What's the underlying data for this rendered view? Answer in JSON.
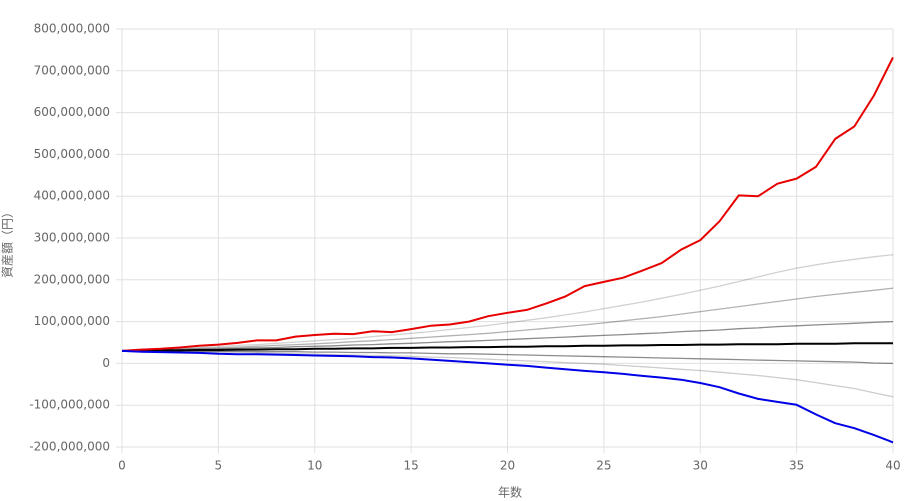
{
  "chart_data": {
    "type": "line",
    "x_label": "年数",
    "y_label": "資産額（円）",
    "x": [
      0,
      1,
      2,
      3,
      4,
      5,
      6,
      7,
      8,
      9,
      10,
      11,
      12,
      13,
      14,
      15,
      16,
      17,
      18,
      19,
      20,
      21,
      22,
      23,
      24,
      25,
      26,
      27,
      28,
      29,
      30,
      31,
      32,
      33,
      34,
      35,
      36,
      37,
      38,
      39,
      40
    ],
    "xlim": [
      0,
      40
    ],
    "xticks": [
      0,
      5,
      10,
      15,
      20,
      25,
      30,
      35,
      40
    ],
    "ylim": [
      -200000000,
      800000000
    ],
    "yticks": [
      {
        "value": -200000000,
        "label": "-200,000,000"
      },
      {
        "value": -100000000,
        "label": "-100,000,000"
      },
      0,
      {
        "value": 100000000,
        "label": "100,000,000"
      },
      {
        "value": 200000000,
        "label": "200,000,000"
      },
      {
        "value": 300000000,
        "label": "300,000,000"
      },
      {
        "value": 400000000,
        "label": "400,000,000"
      },
      {
        "value": 500000000,
        "label": "500,000,000"
      },
      {
        "value": 600000000,
        "label": "600,000,000"
      },
      {
        "value": 700000000,
        "label": "700,000,000"
      },
      {
        "value": 800000000,
        "label": "800,000,000"
      }
    ],
    "grid": true,
    "series": [
      {
        "color": "rgba(0,0,0,0.18)",
        "values": [
          30000000,
          32000000,
          34000000,
          36000000,
          38000000,
          40000000,
          43000000,
          45000000,
          48000000,
          51000000,
          54000000,
          57000000,
          60000000,
          64000000,
          68000000,
          72000000,
          76000000,
          81000000,
          86000000,
          91000000,
          97000000,
          103000000,
          109000000,
          116000000,
          123000000,
          131000000,
          139000000,
          147000000,
          156000000,
          165000000,
          175000000,
          185000000,
          196000000,
          207000000,
          218000000,
          228000000,
          236000000,
          243000000,
          249000000,
          255000000,
          260000000
        ]
      },
      {
        "color": "rgba(0,0,0,0.3)",
        "values": [
          30000000,
          31000000,
          33000000,
          34000000,
          36000000,
          37000000,
          39000000,
          41000000,
          43000000,
          45000000,
          47000000,
          49000000,
          52000000,
          54000000,
          57000000,
          60000000,
          63000000,
          66000000,
          69000000,
          72000000,
          76000000,
          80000000,
          84000000,
          88000000,
          92000000,
          97000000,
          102000000,
          107000000,
          112000000,
          118000000,
          124000000,
          130000000,
          136000000,
          142000000,
          148000000,
          154000000,
          160000000,
          165000000,
          170000000,
          175000000,
          180000000
        ]
      },
      {
        "color": "rgba(0,0,0,0.45)",
        "values": [
          30000000,
          31000000,
          32000000,
          33000000,
          34000000,
          35000000,
          36000000,
          37000000,
          38000000,
          40000000,
          41000000,
          42000000,
          44000000,
          45000000,
          47000000,
          48000000,
          50000000,
          52000000,
          53000000,
          55000000,
          57000000,
          59000000,
          61000000,
          63000000,
          65000000,
          67000000,
          69000000,
          71000000,
          73000000,
          76000000,
          78000000,
          80000000,
          83000000,
          85000000,
          88000000,
          90000000,
          92000000,
          94000000,
          96000000,
          98000000,
          100000000
        ]
      },
      {
        "color": "rgba(0,0,0,0.45)",
        "values": [
          30000000,
          30000000,
          30000000,
          30000000,
          29000000,
          29000000,
          29000000,
          28000000,
          28000000,
          28000000,
          27000000,
          27000000,
          26000000,
          26000000,
          25000000,
          25000000,
          24000000,
          23000000,
          23000000,
          22000000,
          21000000,
          20000000,
          19000000,
          18000000,
          17000000,
          16000000,
          15000000,
          14000000,
          13000000,
          12000000,
          11000000,
          10000000,
          9000000,
          8000000,
          7000000,
          6000000,
          5000000,
          4000000,
          3000000,
          1000000,
          0
        ]
      },
      {
        "color": "rgba(0,0,0,0.2)",
        "values": [
          30000000,
          29000000,
          29000000,
          28000000,
          27000000,
          27000000,
          26000000,
          25000000,
          24000000,
          23000000,
          22000000,
          21000000,
          20000000,
          19000000,
          18000000,
          17000000,
          15000000,
          14000000,
          12000000,
          10000000,
          8000000,
          6000000,
          4000000,
          2000000,
          0,
          -2000000,
          -5000000,
          -8000000,
          -11000000,
          -14000000,
          -17000000,
          -21000000,
          -25000000,
          -29000000,
          -34000000,
          -39000000,
          -46000000,
          -53000000,
          -60000000,
          -70000000,
          -80000000
        ]
      },
      {
        "color": "#000000",
        "values": [
          30000000,
          30000000,
          31000000,
          31000000,
          32000000,
          32000000,
          33000000,
          33000000,
          34000000,
          34000000,
          35000000,
          35000000,
          36000000,
          36000000,
          37000000,
          37000000,
          38000000,
          38000000,
          39000000,
          39000000,
          40000000,
          40000000,
          41000000,
          41000000,
          42000000,
          42000000,
          43000000,
          43000000,
          44000000,
          44000000,
          45000000,
          45000000,
          46000000,
          46000000,
          46000000,
          47000000,
          47000000,
          47000000,
          48000000,
          48000000,
          48000000
        ]
      },
      {
        "color": "#e60000",
        "values": [
          30000000,
          33000000,
          35000000,
          38000000,
          42000000,
          45000000,
          49000000,
          55000000,
          55000000,
          64000000,
          68000000,
          71000000,
          70000000,
          77000000,
          75000000,
          82000000,
          90000000,
          93000000,
          100000000,
          113000000,
          121000000,
          128000000,
          143000000,
          160000000,
          185000000,
          195000000,
          205000000,
          222000000,
          240000000,
          272000000,
          295000000,
          340000000,
          402000000,
          400000000,
          430000000,
          442000000,
          470000000,
          537000000,
          567000000,
          640000000,
          732000000
        ]
      },
      {
        "color": "#0000e6",
        "values": [
          30000000,
          28000000,
          27000000,
          26000000,
          25000000,
          23000000,
          22000000,
          22000000,
          21000000,
          20000000,
          19000000,
          18000000,
          17000000,
          15000000,
          14000000,
          12000000,
          9000000,
          6000000,
          3000000,
          0,
          -3000000,
          -6000000,
          -10000000,
          -14000000,
          -18000000,
          -21000000,
          -25000000,
          -30000000,
          -34000000,
          -39000000,
          -47000000,
          -57000000,
          -72000000,
          -85000000,
          -92000000,
          -99000000,
          -122000000,
          -143000000,
          -155000000,
          -171000000,
          -189000000
        ]
      }
    ]
  }
}
